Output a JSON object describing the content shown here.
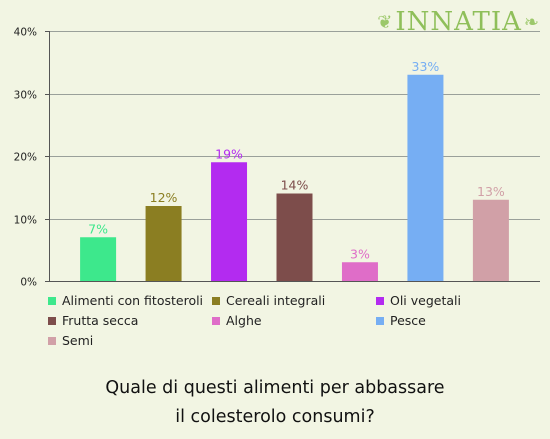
{
  "brand": {
    "logo_text": "INNATIA"
  },
  "question": {
    "line1": "Quale di questi alimenti per abbassare",
    "line2": "il colesterolo consumi?"
  },
  "chart_data": {
    "type": "bar",
    "categories": [
      "Alimenti con fitosteroli",
      "Cereali integrali",
      "Oli vegetali",
      "Frutta secca",
      "Alghe",
      "Pesce",
      "Semi"
    ],
    "values": [
      7,
      12,
      19,
      14,
      3,
      33,
      13
    ],
    "value_labels": [
      "7%",
      "12%",
      "19%",
      "14%",
      "3%",
      "33%",
      "13%"
    ],
    "colors": [
      "#3de88c",
      "#8b7e22",
      "#b32bf0",
      "#7d4d4b",
      "#df6dc8",
      "#76aef3",
      "#d1a0a7"
    ],
    "yticks": [
      "0%",
      "10%",
      "20%",
      "30%",
      "40%"
    ],
    "ylim": [
      0,
      40
    ],
    "grid": true,
    "legend_position": "bottom"
  }
}
